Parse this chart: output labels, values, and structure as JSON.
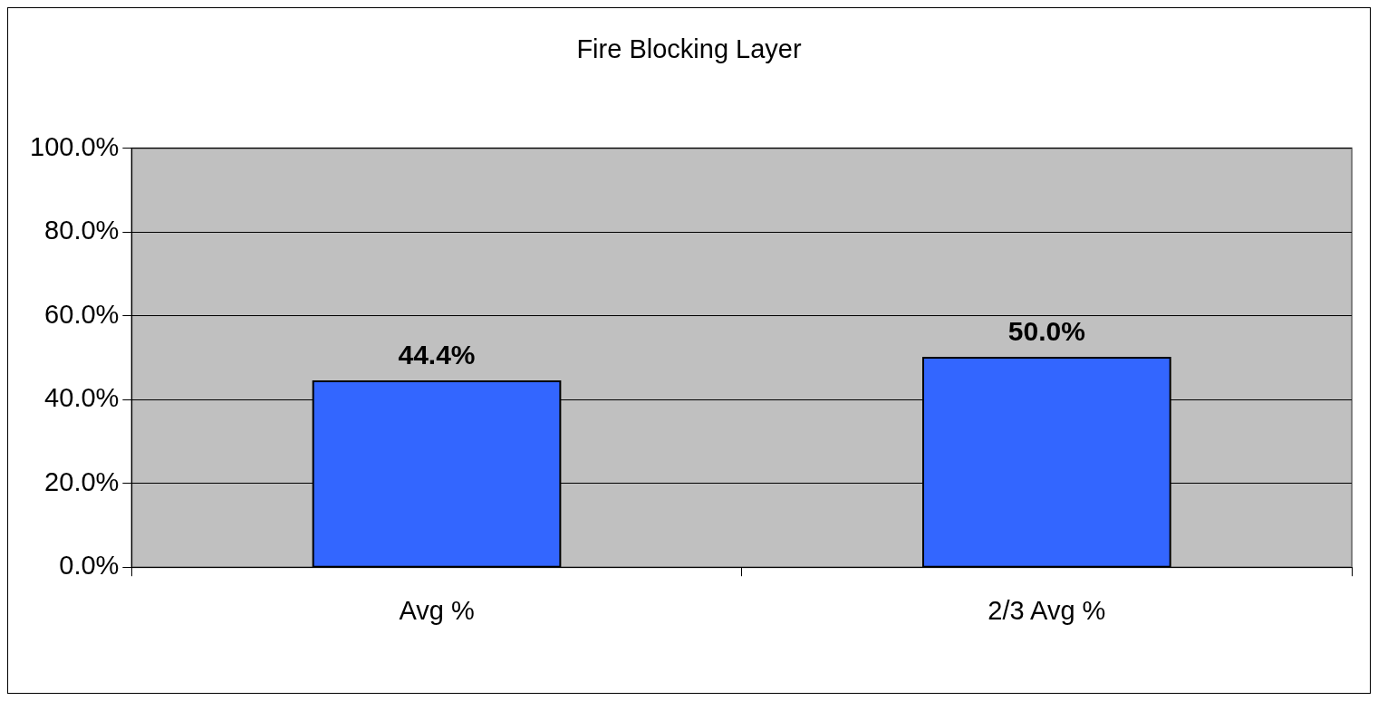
{
  "chart_data": {
    "type": "bar",
    "title": "Fire Blocking Layer",
    "categories": [
      "Avg %",
      "2/3 Avg %"
    ],
    "values": [
      44.4,
      50.0
    ],
    "color": "#3366ff",
    "value_labels": [
      "44.4%",
      "50.0%"
    ],
    "ylim": [
      0,
      100
    ],
    "yticks": [
      {
        "value": 0,
        "label": "0.0%"
      },
      {
        "value": 20,
        "label": "20.0%"
      },
      {
        "value": 40,
        "label": "40.0%"
      },
      {
        "value": 60,
        "label": "60.0%"
      },
      {
        "value": 80,
        "label": "80.0%"
      },
      {
        "value": 100,
        "label": "100.0%"
      }
    ],
    "grid": "y",
    "legend": false
  }
}
